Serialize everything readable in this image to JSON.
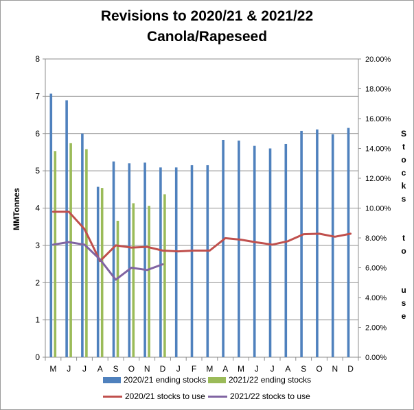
{
  "chart_data": {
    "type": "bar",
    "title_lines": [
      "Revisions to 2020/21  & 2021/22",
      "Canola/Rapeseed"
    ],
    "ylabel": "MMTonnes",
    "y2label": "Stocks to use",
    "ylim": [
      0,
      8
    ],
    "y2lim": [
      0,
      0.2
    ],
    "yticks": [
      "0",
      "1",
      "2",
      "3",
      "4",
      "5",
      "6",
      "7",
      "8"
    ],
    "y2ticks": [
      "0.00%",
      "2.00%",
      "4.00%",
      "6.00%",
      "8.00%",
      "10.00%",
      "12.00%",
      "14.00%",
      "16.00%",
      "18.00%",
      "20.00%"
    ],
    "grid": true,
    "legend_position": "bottom",
    "categories": [
      "M",
      "J",
      "J",
      "A",
      "S",
      "O",
      "N",
      "D",
      "J",
      "F",
      "M",
      "A",
      "M",
      "J",
      "J",
      "A",
      "S",
      "O",
      "N",
      "D"
    ],
    "series": [
      {
        "name": "2020/21 ending stocks",
        "kind": "bar",
        "axis": "left",
        "color": "#4f81bd",
        "values": [
          7.07,
          6.89,
          6.0,
          4.57,
          5.25,
          5.2,
          5.22,
          5.09,
          5.09,
          5.15,
          5.15,
          5.83,
          5.81,
          5.67,
          5.6,
          5.72,
          6.07,
          6.11,
          5.98,
          6.15
        ]
      },
      {
        "name": "2021/22 ending stocks",
        "kind": "bar",
        "axis": "left",
        "color": "#9bbb59",
        "values": [
          5.53,
          5.74,
          5.58,
          4.54,
          3.66,
          4.13,
          4.06,
          4.37,
          null,
          null,
          null,
          null,
          null,
          null,
          null,
          null,
          null,
          null,
          null,
          null
        ]
      },
      {
        "name": "2020/21 stocks to use",
        "kind": "line",
        "axis": "right",
        "color": "#c0504d",
        "values": [
          0.0975,
          0.0975,
          0.086,
          0.0645,
          0.075,
          0.0735,
          0.074,
          0.0715,
          0.071,
          0.0715,
          0.0715,
          0.0798,
          0.0788,
          0.077,
          0.0755,
          0.0778,
          0.0825,
          0.0828,
          0.0808,
          0.0828
        ]
      },
      {
        "name": "2021/22 stocks to use",
        "kind": "line",
        "axis": "right",
        "color": "#8064a2",
        "values": [
          0.0755,
          0.0772,
          0.0755,
          0.0655,
          0.052,
          0.06,
          0.0585,
          0.0623,
          null,
          null,
          null,
          null,
          null,
          null,
          null,
          null,
          null,
          null,
          null,
          null
        ]
      }
    ]
  }
}
